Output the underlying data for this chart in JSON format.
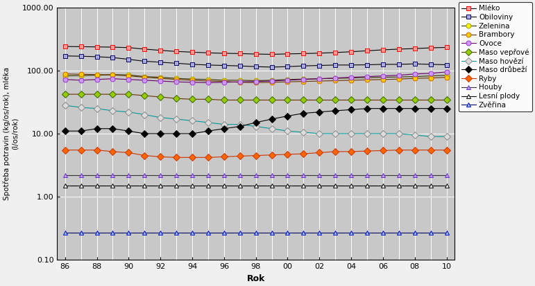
{
  "years": [
    1986,
    1987,
    1988,
    1989,
    1990,
    1991,
    1992,
    1993,
    1994,
    1995,
    1996,
    1997,
    1998,
    1999,
    2000,
    2001,
    2002,
    2003,
    2004,
    2005,
    2006,
    2007,
    2008,
    2009,
    2010
  ],
  "series": [
    {
      "name": "Mléko",
      "linecolor": "#000000",
      "marker": "s",
      "markerface": "#FF9999",
      "markeredge": "#FF0000",
      "linewidth": 1.0,
      "values": [
        240,
        238,
        236,
        234,
        230,
        218,
        208,
        200,
        195,
        190,
        187,
        185,
        182,
        180,
        183,
        185,
        188,
        192,
        198,
        205,
        212,
        218,
        222,
        228,
        232
      ]
    },
    {
      "name": "Obiloviny",
      "linecolor": "#000000",
      "marker": "s",
      "markerface": "#AAAADD",
      "markeredge": "#000066",
      "linewidth": 1.0,
      "values": [
        170,
        168,
        165,
        160,
        150,
        140,
        135,
        130,
        125,
        122,
        120,
        118,
        115,
        113,
        115,
        118,
        120,
        122,
        122,
        123,
        125,
        125,
        127,
        125,
        123
      ]
    },
    {
      "name": "Zelenina",
      "linecolor": "#333300",
      "marker": "o",
      "markerface": "#FFFF00",
      "markeredge": "#999900",
      "linewidth": 1.0,
      "values": [
        82,
        83,
        84,
        86,
        85,
        80,
        78,
        75,
        73,
        72,
        70,
        70,
        69,
        70,
        72,
        73,
        74,
        75,
        76,
        77,
        78,
        79,
        80,
        82,
        84
      ]
    },
    {
      "name": "Brambory",
      "linecolor": "#663300",
      "marker": "o",
      "markerface": "#FFCC00",
      "markeredge": "#CC6600",
      "linewidth": 1.0,
      "values": [
        88,
        87,
        86,
        85,
        82,
        78,
        75,
        72,
        70,
        68,
        67,
        65,
        64,
        65,
        66,
        67,
        68,
        69,
        70,
        71,
        72,
        73,
        75,
        76,
        78
      ]
    },
    {
      "name": "Ovoce",
      "linecolor": "#660066",
      "marker": "o",
      "markerface": "#CC99FF",
      "markeredge": "#9933CC",
      "linewidth": 1.0,
      "values": [
        72,
        70,
        72,
        74,
        72,
        70,
        68,
        66,
        65,
        64,
        65,
        66,
        67,
        68,
        70,
        72,
        74,
        76,
        78,
        80,
        82,
        84,
        88,
        90,
        95
      ]
    },
    {
      "name": "Maso vepřové",
      "linecolor": "#663300",
      "marker": "D",
      "markerface": "#99CC00",
      "markeredge": "#336600",
      "linewidth": 1.0,
      "values": [
        42,
        42,
        42,
        42,
        42,
        40,
        38,
        36,
        35,
        35,
        34,
        34,
        34,
        34,
        34,
        34,
        34,
        34,
        34,
        34,
        34,
        34,
        34,
        34,
        34
      ]
    },
    {
      "name": "Maso hovězí",
      "linecolor": "#009999",
      "marker": "D",
      "markerface": "#DDDDDD",
      "markeredge": "#888888",
      "linewidth": 1.0,
      "values": [
        28,
        26,
        25,
        23,
        22,
        20,
        18,
        17,
        16,
        15,
        14,
        14,
        13,
        12,
        11,
        10.5,
        10,
        10,
        10,
        10,
        10,
        10,
        9.5,
        9,
        9
      ]
    },
    {
      "name": "Maso drůbeží",
      "linecolor": "#000000",
      "marker": "D",
      "markerface": "#000000",
      "markeredge": "#000000",
      "linewidth": 1.0,
      "values": [
        11,
        11,
        12,
        12,
        11,
        10,
        10,
        10,
        10,
        11,
        12,
        13,
        15,
        17,
        19,
        21,
        22,
        23,
        24,
        25,
        25,
        25,
        25,
        25,
        25
      ]
    },
    {
      "name": "Ryby",
      "linecolor": "#CC3300",
      "marker": "D",
      "markerface": "#FF6600",
      "markeredge": "#CC3300",
      "linewidth": 1.0,
      "values": [
        5.5,
        5.5,
        5.5,
        5.2,
        5.0,
        4.5,
        4.3,
        4.2,
        4.2,
        4.2,
        4.3,
        4.4,
        4.5,
        4.6,
        4.7,
        4.8,
        5.0,
        5.2,
        5.2,
        5.3,
        5.4,
        5.5,
        5.5,
        5.5,
        5.5
      ]
    },
    {
      "name": "Houby",
      "linecolor": "#333333",
      "marker": "^",
      "markerface": "#CC99FF",
      "markeredge": "#6633CC",
      "linewidth": 1.0,
      "values": [
        2.2,
        2.2,
        2.2,
        2.2,
        2.2,
        2.2,
        2.2,
        2.2,
        2.2,
        2.2,
        2.2,
        2.2,
        2.2,
        2.2,
        2.2,
        2.2,
        2.2,
        2.2,
        2.2,
        2.2,
        2.2,
        2.2,
        2.2,
        2.2,
        2.2
      ]
    },
    {
      "name": "Lesní plody",
      "linecolor": "#000000",
      "marker": "^",
      "markerface": "#FFFFFF",
      "markeredge": "#000000",
      "linewidth": 1.0,
      "values": [
        1.5,
        1.5,
        1.5,
        1.5,
        1.5,
        1.5,
        1.5,
        1.5,
        1.5,
        1.5,
        1.5,
        1.5,
        1.5,
        1.5,
        1.5,
        1.5,
        1.5,
        1.5,
        1.5,
        1.5,
        1.5,
        1.5,
        1.5,
        1.5,
        1.5
      ]
    },
    {
      "name": "Zvěřina",
      "linecolor": "#000066",
      "marker": "^",
      "markerface": "#99CCFF",
      "markeredge": "#0000CC",
      "linewidth": 1.0,
      "values": [
        0.27,
        0.27,
        0.27,
        0.27,
        0.27,
        0.27,
        0.27,
        0.27,
        0.27,
        0.27,
        0.27,
        0.27,
        0.27,
        0.27,
        0.27,
        0.27,
        0.27,
        0.27,
        0.27,
        0.27,
        0.27,
        0.27,
        0.27,
        0.27,
        0.27
      ]
    }
  ],
  "ylabel": "Spotřeba potravin (kg/os/rok), mléka\n(l/os/rok)",
  "xlabel": "Rok",
  "ylim": [
    0.1,
    1000.0
  ],
  "ytick_vals": [
    0.1,
    1.0,
    10.0,
    100.0,
    1000.0
  ],
  "ytick_labels": [
    "0.10",
    "1.00",
    "10.00",
    "100.00",
    "1000.00"
  ],
  "xtick_values": [
    1986,
    1988,
    1990,
    1992,
    1994,
    1996,
    1998,
    2000,
    2002,
    2004,
    2006,
    2008,
    2010
  ],
  "xtick_labels": [
    "86",
    "88",
    "90",
    "92",
    "94",
    "96",
    "98",
    "00",
    "02",
    "04",
    "06",
    "08",
    "10"
  ],
  "xlim": [
    1985.5,
    2010.5
  ],
  "plot_bg_color": "#C8C8C8",
  "fig_bg_color": "#F0F0F0",
  "grid_color": "#FFFFFF",
  "figsize": [
    7.71,
    4.13
  ],
  "dpi": 100
}
